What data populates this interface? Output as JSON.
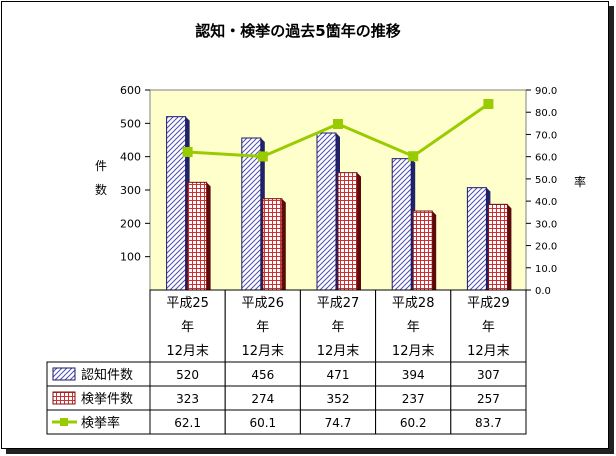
{
  "chart_data": {
    "type": "bar",
    "title": "認知・検挙の過去5箇年の推移",
    "categories": [
      [
        "平成25",
        "年",
        "12月末"
      ],
      [
        "平成26",
        "年",
        "12月末"
      ],
      [
        "平成27",
        "年",
        "12月末"
      ],
      [
        "平成28",
        "年",
        "12月末"
      ],
      [
        "平成29",
        "年",
        "12月末"
      ]
    ],
    "series": [
      {
        "name": "認知件数",
        "kind": "bar",
        "axis": "left",
        "values": [
          520,
          456,
          471,
          394,
          307
        ],
        "color": "#8a8ad8"
      },
      {
        "name": "検挙件数",
        "kind": "bar",
        "axis": "left",
        "values": [
          323,
          274,
          352,
          237,
          257
        ],
        "color": "#e07a7a"
      },
      {
        "name": "検挙率",
        "kind": "line",
        "axis": "right",
        "values": [
          62.1,
          60.1,
          74.7,
          60.2,
          83.7
        ],
        "color": "#99cc00"
      }
    ],
    "table_values": [
      [
        "520",
        "456",
        "471",
        "394",
        "307"
      ],
      [
        "323",
        "274",
        "352",
        "237",
        "257"
      ],
      [
        "62.1",
        "60.1",
        "74.7",
        "60.2",
        "83.7"
      ]
    ],
    "ylabel_left": [
      "件",
      "数"
    ],
    "ylabel_right": "率",
    "ylim_left": [
      0,
      600
    ],
    "yticks_left": [
      "600",
      "500",
      "400",
      "300",
      "200",
      "100"
    ],
    "ylim_right": [
      0,
      90
    ],
    "yticks_right": [
      "90.0",
      "80.0",
      "70.0",
      "60.0",
      "50.0",
      "40.0",
      "30.0",
      "20.0",
      "10.0",
      "0.0"
    ],
    "plot_background": "#ffffcc",
    "grid": false,
    "legend_placement": "data-table"
  }
}
